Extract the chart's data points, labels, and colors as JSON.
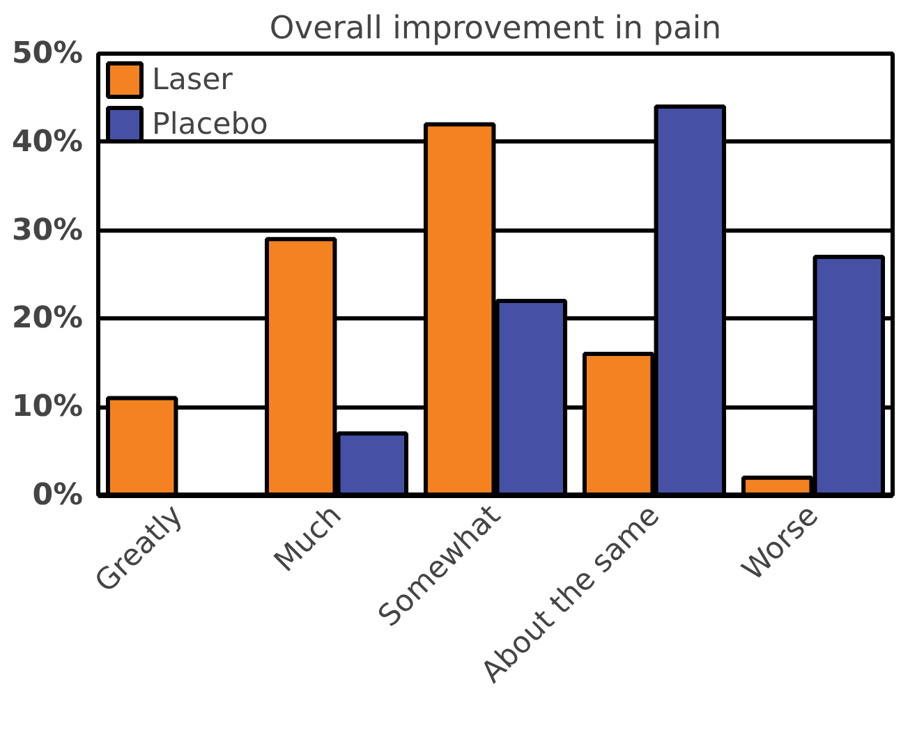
{
  "chart_data": {
    "type": "bar",
    "title": "Overall improvement in pain",
    "categories": [
      "Greatly",
      "Much",
      "Somewhat",
      "About the same",
      "Worse"
    ],
    "series": [
      {
        "name": "Laser",
        "color": "#f58220",
        "values": [
          11,
          29,
          42,
          16,
          2
        ]
      },
      {
        "name": "Placebo",
        "color": "#4651a5",
        "values": [
          null,
          7,
          22,
          44,
          27
        ]
      }
    ],
    "ylim": [
      0,
      50
    ],
    "yticks": [
      {
        "value": 0,
        "label": "0%"
      },
      {
        "value": 10,
        "label": "10%"
      },
      {
        "value": 20,
        "label": "20%"
      },
      {
        "value": 30,
        "label": "30%"
      },
      {
        "value": 40,
        "label": "40%"
      },
      {
        "value": 50,
        "label": "50%"
      }
    ],
    "grid": "y",
    "legend": "top left"
  }
}
